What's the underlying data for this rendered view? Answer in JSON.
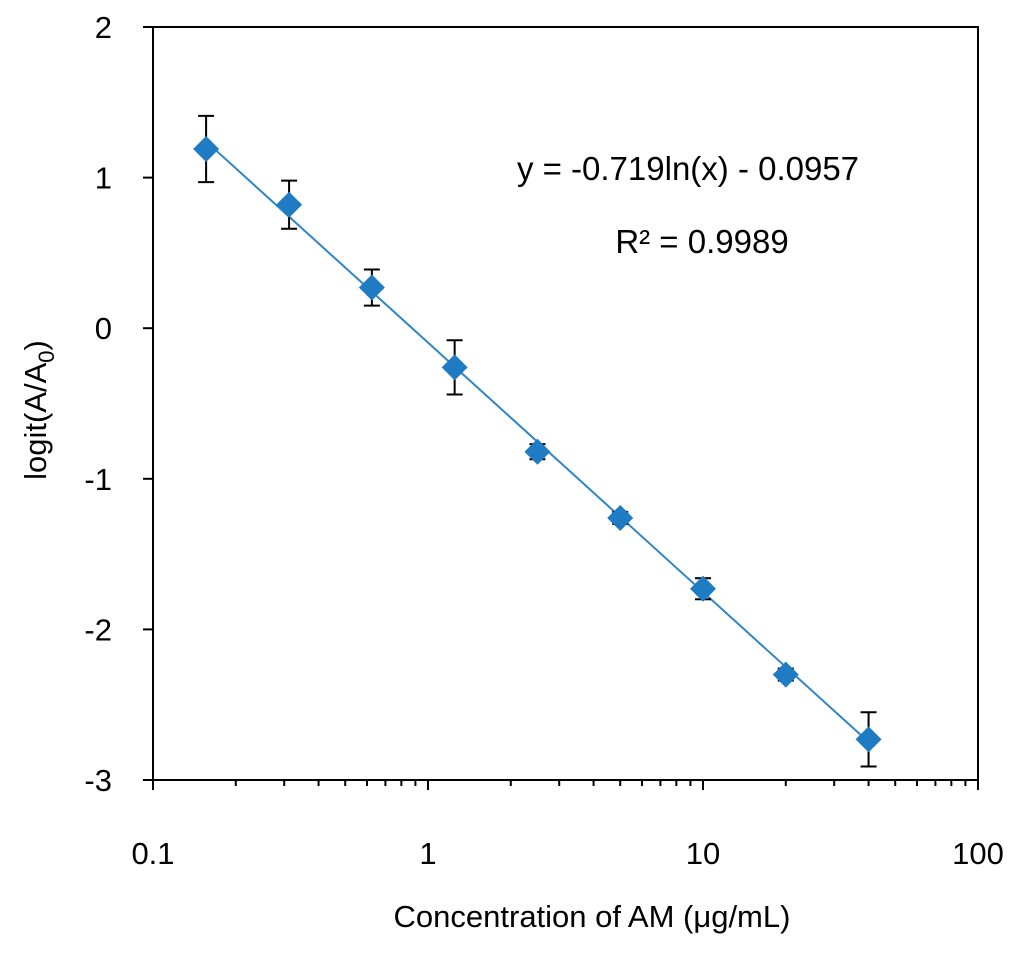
{
  "chart_data": {
    "type": "scatter",
    "x_scale": "log",
    "xlim": [
      0.1,
      100
    ],
    "ylim": [
      -3,
      2
    ],
    "x_ticks": [
      0.1,
      1,
      10,
      100
    ],
    "x_tick_labels": [
      "0.1",
      "1",
      "10",
      "100"
    ],
    "y_ticks": [
      2,
      1,
      0,
      -1,
      -2,
      -3
    ],
    "y_tick_labels": [
      "2",
      "1",
      "0",
      "-1",
      "-2",
      "-3"
    ],
    "xlabel": "Concentration of AM (μg/mL)",
    "ylabel": {
      "main": "logit(A/A",
      "sub": "0",
      "close": ")"
    },
    "series": [
      {
        "name": "logit(A/A0)",
        "color": "#1f7bc4",
        "marker": "diamond",
        "x": [
          0.156,
          0.3125,
          0.625,
          1.25,
          2.5,
          5,
          10,
          20,
          40
        ],
        "y": [
          1.19,
          0.82,
          0.27,
          -0.26,
          -0.82,
          -1.26,
          -1.73,
          -2.3,
          -2.73
        ],
        "error": [
          0.22,
          0.16,
          0.12,
          0.18,
          0.05,
          0.04,
          0.07,
          0.04,
          0.18
        ]
      }
    ],
    "trendline": {
      "type": "logarithmic",
      "slope": -0.719,
      "intercept": -0.0957,
      "color": "#2e86c8",
      "equation": "y = -0.719ln(x) - 0.0957",
      "r_squared": "R² = 0.9989"
    },
    "grid": false
  }
}
